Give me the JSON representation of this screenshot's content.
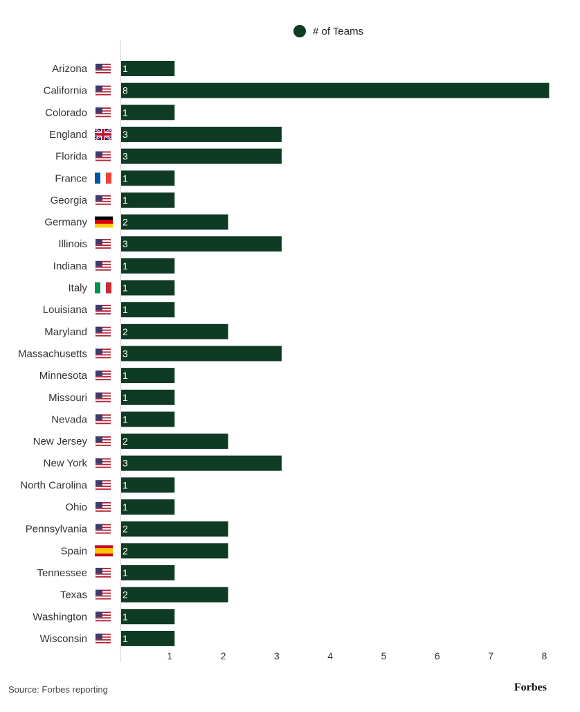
{
  "chart_data": {
    "type": "bar",
    "orientation": "horizontal",
    "legend": {
      "position": "top",
      "entries": [
        {
          "label": "# of Teams",
          "color": "#0f3a24"
        }
      ]
    },
    "categories": [
      "Arizona",
      "California",
      "Colorado",
      "England",
      "Florida",
      "France",
      "Georgia",
      "Germany",
      "Illinois",
      "Indiana",
      "Italy",
      "Louisiana",
      "Maryland",
      "Massachusetts",
      "Minnesota",
      "Missouri",
      "Nevada",
      "New Jersey",
      "New York",
      "North Carolina",
      "Ohio",
      "Pennsylvania",
      "Spain",
      "Tennessee",
      "Texas",
      "Washington",
      "Wisconsin"
    ],
    "flags": [
      "us-flag",
      "us-flag",
      "us-flag",
      "uk-flag",
      "us-flag",
      "france-flag",
      "us-flag",
      "germany-flag",
      "us-flag",
      "us-flag",
      "italy-flag",
      "us-flag",
      "us-flag",
      "us-flag",
      "us-flag",
      "us-flag",
      "us-flag",
      "us-flag",
      "us-flag",
      "us-flag",
      "us-flag",
      "us-flag",
      "spain-flag",
      "us-flag",
      "us-flag",
      "us-flag",
      "us-flag"
    ],
    "series": [
      {
        "name": "# of Teams",
        "values": [
          1,
          8,
          1,
          3,
          3,
          1,
          1,
          2,
          3,
          1,
          1,
          1,
          2,
          3,
          1,
          1,
          1,
          2,
          3,
          1,
          1,
          2,
          2,
          1,
          2,
          1,
          1
        ],
        "color": "#0f3a24"
      }
    ],
    "xticks": [
      1,
      2,
      3,
      4,
      5,
      6,
      7,
      8
    ],
    "xlim": [
      0,
      8
    ],
    "grid": false,
    "bar_label_color": "#ffffff",
    "axis_color": "#cccccc"
  },
  "source_text": "Source: Forbes reporting",
  "brand_text": "Forbes"
}
